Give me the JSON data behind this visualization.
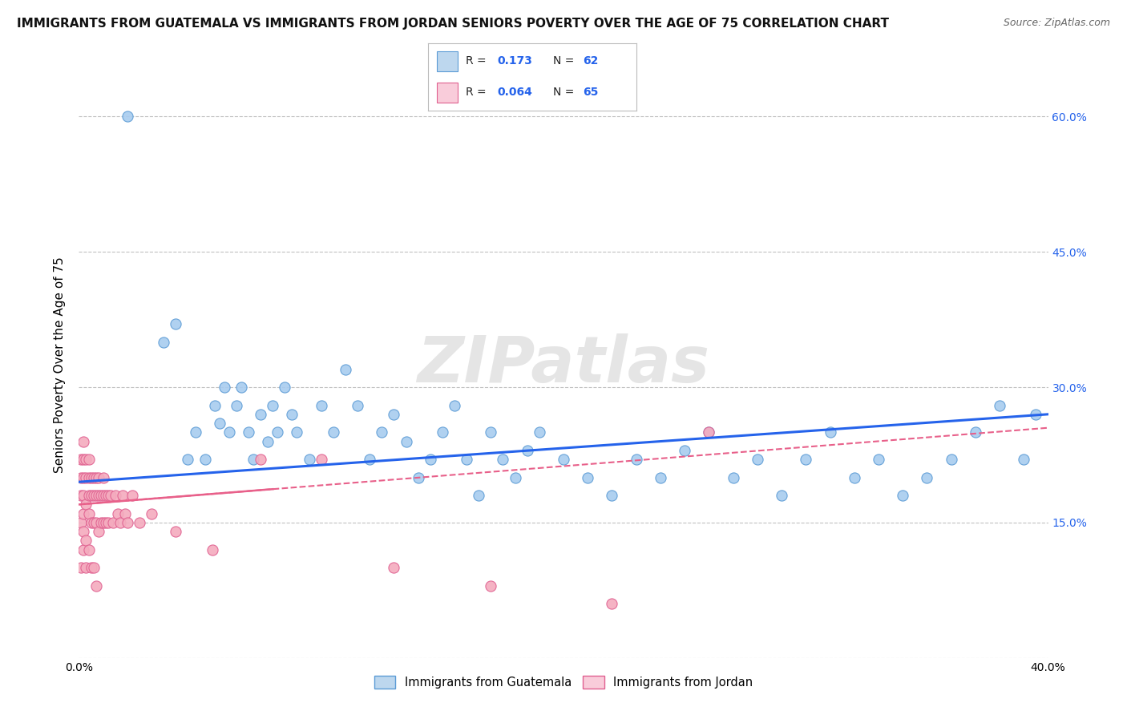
{
  "title": "IMMIGRANTS FROM GUATEMALA VS IMMIGRANTS FROM JORDAN SENIORS POVERTY OVER THE AGE OF 75 CORRELATION CHART",
  "source": "Source: ZipAtlas.com",
  "ylabel": "Seniors Poverty Over the Age of 75",
  "xlim": [
    0.0,
    0.4
  ],
  "ylim": [
    0.0,
    0.65
  ],
  "ytick_vals": [
    0.0,
    0.15,
    0.3,
    0.45,
    0.6
  ],
  "r_guatemala": 0.173,
  "n_guatemala": 62,
  "r_jordan": 0.064,
  "n_jordan": 65,
  "color_guatemala_face": "#A8CCEF",
  "color_guatemala_edge": "#5B9BD5",
  "color_jordan_face": "#F4ABBE",
  "color_jordan_edge": "#E06090",
  "color_trendline_guatemala": "#2563EB",
  "color_trendline_jordan": "#E8608A",
  "legend_face_guatemala": "#BDD7EE",
  "legend_face_jordan": "#F9CCDA",
  "watermark": "ZIPatlas",
  "background_color": "#FFFFFF",
  "grid_color": "#C0C0C0",
  "title_fontsize": 11,
  "ylabel_fontsize": 11,
  "tick_fontsize": 10,
  "guatemala_x": [
    0.02,
    0.035,
    0.04,
    0.045,
    0.048,
    0.052,
    0.056,
    0.058,
    0.06,
    0.062,
    0.065,
    0.067,
    0.07,
    0.072,
    0.075,
    0.078,
    0.08,
    0.082,
    0.085,
    0.088,
    0.09,
    0.095,
    0.1,
    0.105,
    0.11,
    0.115,
    0.12,
    0.125,
    0.13,
    0.135,
    0.14,
    0.145,
    0.15,
    0.155,
    0.16,
    0.165,
    0.17,
    0.175,
    0.18,
    0.185,
    0.19,
    0.2,
    0.21,
    0.22,
    0.23,
    0.24,
    0.25,
    0.26,
    0.27,
    0.28,
    0.29,
    0.3,
    0.31,
    0.32,
    0.33,
    0.34,
    0.35,
    0.36,
    0.37,
    0.38,
    0.39,
    0.395
  ],
  "guatemala_y": [
    0.6,
    0.35,
    0.37,
    0.22,
    0.25,
    0.22,
    0.28,
    0.26,
    0.3,
    0.25,
    0.28,
    0.3,
    0.25,
    0.22,
    0.27,
    0.24,
    0.28,
    0.25,
    0.3,
    0.27,
    0.25,
    0.22,
    0.28,
    0.25,
    0.32,
    0.28,
    0.22,
    0.25,
    0.27,
    0.24,
    0.2,
    0.22,
    0.25,
    0.28,
    0.22,
    0.18,
    0.25,
    0.22,
    0.2,
    0.23,
    0.25,
    0.22,
    0.2,
    0.18,
    0.22,
    0.2,
    0.23,
    0.25,
    0.2,
    0.22,
    0.18,
    0.22,
    0.25,
    0.2,
    0.22,
    0.18,
    0.2,
    0.22,
    0.25,
    0.28,
    0.22,
    0.27
  ],
  "jordan_x": [
    0.001,
    0.001,
    0.001,
    0.001,
    0.001,
    0.002,
    0.002,
    0.002,
    0.002,
    0.002,
    0.002,
    0.002,
    0.003,
    0.003,
    0.003,
    0.003,
    0.003,
    0.004,
    0.004,
    0.004,
    0.004,
    0.004,
    0.005,
    0.005,
    0.005,
    0.005,
    0.006,
    0.006,
    0.006,
    0.006,
    0.007,
    0.007,
    0.007,
    0.007,
    0.008,
    0.008,
    0.008,
    0.009,
    0.009,
    0.01,
    0.01,
    0.01,
    0.011,
    0.011,
    0.012,
    0.012,
    0.013,
    0.014,
    0.015,
    0.016,
    0.017,
    0.018,
    0.019,
    0.02,
    0.022,
    0.025,
    0.03,
    0.04,
    0.055,
    0.075,
    0.1,
    0.13,
    0.17,
    0.22,
    0.26
  ],
  "jordan_y": [
    0.18,
    0.2,
    0.22,
    0.15,
    0.1,
    0.18,
    0.2,
    0.22,
    0.16,
    0.24,
    0.14,
    0.12,
    0.2,
    0.22,
    0.17,
    0.13,
    0.1,
    0.18,
    0.2,
    0.22,
    0.16,
    0.12,
    0.18,
    0.2,
    0.15,
    0.1,
    0.18,
    0.2,
    0.15,
    0.1,
    0.18,
    0.2,
    0.15,
    0.08,
    0.18,
    0.2,
    0.14,
    0.18,
    0.15,
    0.2,
    0.18,
    0.15,
    0.18,
    0.15,
    0.18,
    0.15,
    0.18,
    0.15,
    0.18,
    0.16,
    0.15,
    0.18,
    0.16,
    0.15,
    0.18,
    0.15,
    0.16,
    0.14,
    0.12,
    0.22,
    0.22,
    0.1,
    0.08,
    0.06,
    0.25
  ],
  "trendline_guatemala_x0": 0.0,
  "trendline_guatemala_x1": 0.4,
  "trendline_guatemala_y0": 0.195,
  "trendline_guatemala_y1": 0.27,
  "trendline_jordan_x0": 0.0,
  "trendline_jordan_x1": 0.4,
  "trendline_jordan_y0": 0.17,
  "trendline_jordan_y1": 0.255
}
